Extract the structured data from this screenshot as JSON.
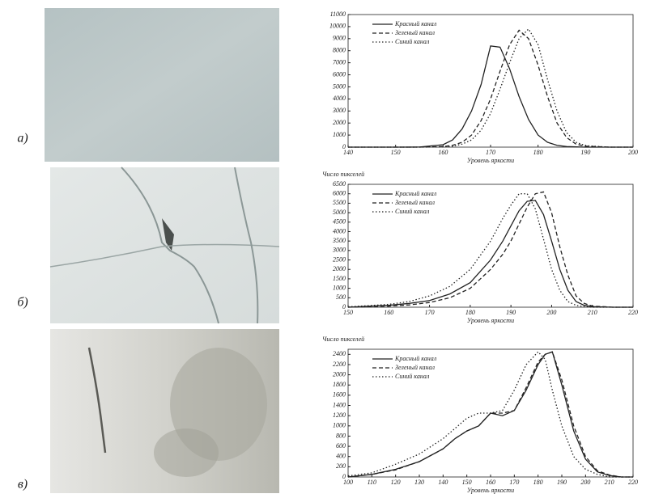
{
  "row_labels": [
    "а)",
    "б)",
    "в)"
  ],
  "chart_data": [
    {
      "type": "line",
      "x_label": "Уровень яркости",
      "x": [
        140,
        145,
        150,
        155,
        160,
        162,
        164,
        166,
        168,
        170,
        172,
        174,
        176,
        178,
        180,
        182,
        184,
        186,
        188,
        190,
        195,
        200
      ],
      "series": [
        {
          "name": "Красный канал",
          "color": "#222222",
          "style": "solid",
          "values": [
            0,
            0,
            0,
            10,
            200,
            600,
            1500,
            3000,
            5200,
            8400,
            8300,
            6500,
            4200,
            2300,
            1000,
            400,
            150,
            50,
            20,
            0,
            0,
            0
          ]
        },
        {
          "name": "Зеленый канал",
          "color": "#222222",
          "style": "dashed",
          "values": [
            0,
            0,
            0,
            0,
            50,
            150,
            400,
            1000,
            2200,
            4000,
            6300,
            8500,
            9700,
            9000,
            6800,
            4200,
            2000,
            800,
            250,
            80,
            0,
            0
          ]
        },
        {
          "name": "Синий канал",
          "color": "#222222",
          "style": "dotted",
          "values": [
            0,
            0,
            0,
            0,
            20,
            80,
            250,
            600,
            1400,
            2800,
            4800,
            7000,
            9000,
            9800,
            8500,
            5600,
            3000,
            1200,
            400,
            120,
            0,
            0
          ]
        }
      ],
      "xlim": [
        140,
        200
      ],
      "xticks": [
        140,
        150,
        160,
        170,
        180,
        190,
        200
      ],
      "ylim": [
        0,
        11000
      ],
      "yticks": [
        0,
        1000,
        2000,
        3000,
        4000,
        5000,
        6000,
        7000,
        8000,
        9000,
        10000,
        11000
      ]
    },
    {
      "type": "line",
      "x_label": "Уровень яркости",
      "y_label": "Число пикселей",
      "x": [
        150,
        155,
        160,
        165,
        170,
        175,
        180,
        185,
        188,
        190,
        192,
        194,
        196,
        198,
        200,
        202,
        204,
        206,
        208,
        210,
        215,
        220
      ],
      "series": [
        {
          "name": "Красный канал",
          "color": "#222222",
          "style": "solid",
          "values": [
            0,
            50,
            100,
            200,
            350,
            700,
            1300,
            2500,
            3500,
            4300,
            5100,
            5600,
            5650,
            4900,
            3500,
            2000,
            900,
            300,
            100,
            30,
            0,
            0
          ]
        },
        {
          "name": "Зеленый канал",
          "color": "#222222",
          "style": "dashed",
          "values": [
            0,
            30,
            60,
            120,
            250,
            500,
            1000,
            2000,
            2800,
            3500,
            4400,
            5300,
            6000,
            6100,
            5000,
            3200,
            1700,
            600,
            200,
            60,
            0,
            0
          ]
        },
        {
          "name": "Синий канал",
          "color": "#222222",
          "style": "dotted",
          "values": [
            20,
            80,
            150,
            300,
            600,
            1100,
            2000,
            3500,
            4700,
            5400,
            6000,
            6000,
            5200,
            3600,
            2000,
            900,
            300,
            100,
            30,
            0,
            0,
            0
          ]
        }
      ],
      "xlim": [
        150,
        220
      ],
      "xticks": [
        150,
        160,
        170,
        180,
        190,
        200,
        210,
        220
      ],
      "ylim": [
        0,
        6500
      ],
      "yticks": [
        0,
        500,
        1000,
        1500,
        2000,
        2500,
        3000,
        3500,
        4000,
        4500,
        5000,
        5500,
        6000,
        6500
      ]
    },
    {
      "type": "line",
      "x_label": "Уровень яркости",
      "y_label": "Число пикселей",
      "x": [
        100,
        110,
        120,
        130,
        140,
        145,
        150,
        155,
        160,
        165,
        170,
        175,
        180,
        183,
        186,
        190,
        195,
        200,
        205,
        210,
        215,
        220
      ],
      "series": [
        {
          "name": "Красный канал",
          "color": "#222222",
          "style": "solid",
          "values": [
            0,
            50,
            150,
            300,
            550,
            750,
            900,
            1000,
            1250,
            1200,
            1300,
            1700,
            2200,
            2400,
            2450,
            1800,
            900,
            350,
            100,
            30,
            0,
            0
          ]
        },
        {
          "name": "Зеленый канал",
          "color": "#222222",
          "style": "dashed",
          "values": [
            0,
            50,
            140,
            300,
            550,
            750,
            900,
            1000,
            1250,
            1250,
            1300,
            1750,
            2250,
            2400,
            2450,
            1900,
            1000,
            400,
            120,
            40,
            0,
            0
          ]
        },
        {
          "name": "Синий канал",
          "color": "#222222",
          "style": "dotted",
          "values": [
            20,
            80,
            250,
            450,
            750,
            950,
            1150,
            1250,
            1250,
            1300,
            1700,
            2200,
            2450,
            2300,
            1700,
            1000,
            400,
            150,
            50,
            0,
            0,
            0
          ]
        }
      ],
      "xlim": [
        100,
        220
      ],
      "xticks": [
        100,
        110,
        120,
        130,
        140,
        150,
        160,
        170,
        180,
        190,
        200,
        210,
        220
      ],
      "ylim": [
        0,
        2500
      ],
      "yticks": [
        0,
        200,
        400,
        600,
        800,
        1000,
        1200,
        1400,
        1600,
        1800,
        2000,
        2200,
        2400
      ]
    }
  ]
}
